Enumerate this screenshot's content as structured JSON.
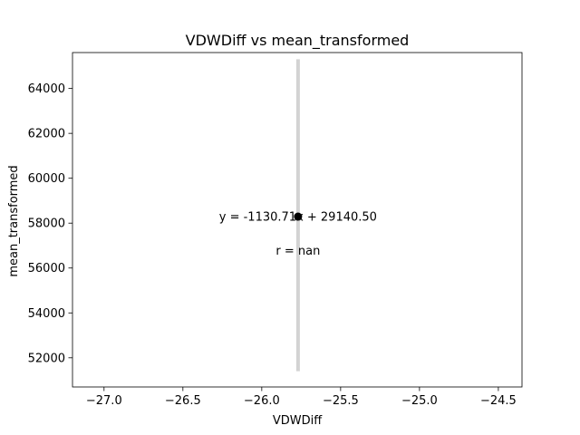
{
  "chart_data": {
    "type": "scatter",
    "title": "VDWDiff vs mean_transformed",
    "xlabel": "VDWDiff",
    "ylabel": "mean_transformed",
    "xlim": [
      -27.2,
      -24.35
    ],
    "ylim": [
      50700,
      65600
    ],
    "xticks": [
      -27.0,
      -26.5,
      -26.0,
      -25.5,
      -25.0,
      -24.5
    ],
    "xtick_labels": [
      "−27.0",
      "−26.5",
      "−26.0",
      "−25.5",
      "−25.0",
      "−24.5"
    ],
    "yticks": [
      52000,
      54000,
      56000,
      58000,
      60000,
      62000,
      64000
    ],
    "ytick_labels": [
      "52000",
      "54000",
      "56000",
      "58000",
      "60000",
      "62000",
      "64000"
    ],
    "points": [
      {
        "x": -25.77,
        "y": 58290
      }
    ],
    "fit_line": {
      "x": [
        -25.77,
        -25.77
      ],
      "y": [
        51400,
        65300
      ],
      "color": "#d3d3d3"
    },
    "point_color": "#000000",
    "annotations": [
      {
        "text": "y = -1130.71x + 29140.50",
        "x": -25.77,
        "y": 58290
      },
      {
        "text": "r = nan",
        "x": -25.77,
        "y": 56770
      }
    ],
    "grid": false,
    "legend": "none"
  }
}
